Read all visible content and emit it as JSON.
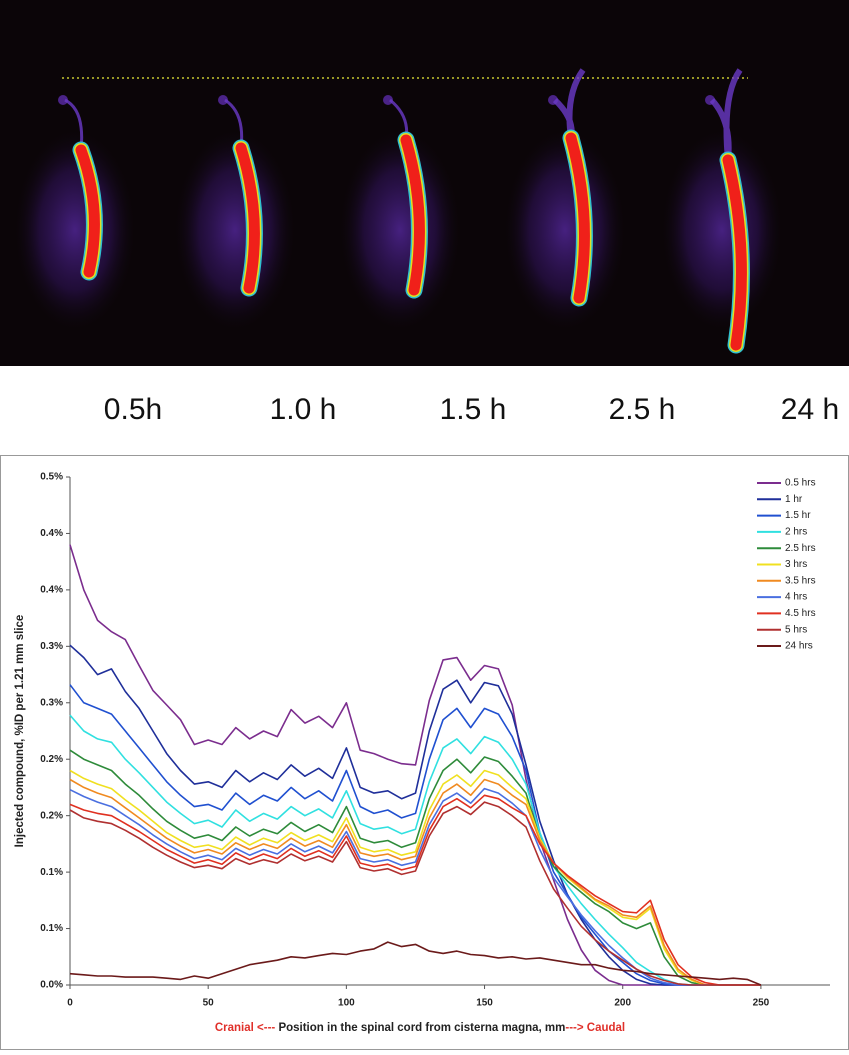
{
  "image_panel": {
    "labels": [
      "0.5h",
      "1.0 h",
      "1.5 h",
      "2.5 h",
      "24 h"
    ]
  },
  "chart_data": {
    "type": "line",
    "ylabel": "Injected compound, %ID per 1.21 mm slice",
    "xlabel": {
      "left": "Cranial <---",
      "middle": " Position in the spinal cord from cisterna magna, mm",
      "right": "---> Caudal"
    },
    "xlim": [
      0,
      275
    ],
    "xticks": [
      0,
      50,
      100,
      150,
      200,
      250
    ],
    "ylim": [
      0,
      0.45
    ],
    "yticks": [
      {
        "value": 0,
        "label": "0.0%"
      },
      {
        "value": 0.05,
        "label": "0.1%"
      },
      {
        "value": 0.1,
        "label": "0.1%"
      },
      {
        "value": 0.15,
        "label": "0.2%"
      },
      {
        "value": 0.2,
        "label": "0.2%"
      },
      {
        "value": 0.25,
        "label": "0.3%"
      },
      {
        "value": 0.3,
        "label": "0.3%"
      },
      {
        "value": 0.35,
        "label": "0.4%"
      },
      {
        "value": 0.4,
        "label": "0.4%"
      },
      {
        "value": 0.45,
        "label": "0.5%"
      }
    ],
    "grid": false,
    "legend": "upper right",
    "x": [
      0,
      5,
      10,
      15,
      20,
      25,
      30,
      35,
      40,
      45,
      50,
      55,
      60,
      65,
      70,
      75,
      80,
      85,
      90,
      95,
      100,
      105,
      110,
      115,
      120,
      125,
      130,
      135,
      140,
      145,
      150,
      155,
      160,
      165,
      170,
      175,
      180,
      185,
      190,
      195,
      200,
      205,
      210,
      215,
      220,
      225,
      230,
      235,
      240,
      245,
      250
    ],
    "series": [
      {
        "name": "0.5 hrs",
        "color": "#7b2d8e",
        "values": [
          0.39,
          0.35,
          0.323,
          0.313,
          0.306,
          0.283,
          0.261,
          0.248,
          0.235,
          0.213,
          0.217,
          0.213,
          0.228,
          0.218,
          0.225,
          0.22,
          0.244,
          0.232,
          0.238,
          0.228,
          0.25,
          0.208,
          0.205,
          0.2,
          0.196,
          0.195,
          0.252,
          0.288,
          0.29,
          0.27,
          0.283,
          0.28,
          0.248,
          0.182,
          0.128,
          0.093,
          0.058,
          0.031,
          0.013,
          0.004,
          0,
          0,
          0,
          0,
          0,
          0,
          0,
          0,
          0,
          0,
          0
        ]
      },
      {
        "name": "1 hr",
        "color": "#1f2f9a",
        "values": [
          0.301,
          0.29,
          0.275,
          0.28,
          0.26,
          0.245,
          0.225,
          0.205,
          0.19,
          0.178,
          0.18,
          0.175,
          0.19,
          0.18,
          0.188,
          0.182,
          0.195,
          0.185,
          0.192,
          0.183,
          0.21,
          0.175,
          0.17,
          0.172,
          0.165,
          0.17,
          0.225,
          0.262,
          0.27,
          0.25,
          0.268,
          0.265,
          0.24,
          0.195,
          0.145,
          0.11,
          0.08,
          0.058,
          0.04,
          0.025,
          0.013,
          0.005,
          0.001,
          0,
          0,
          0,
          0,
          0,
          0,
          0,
          0
        ]
      },
      {
        "name": "1.5 hr",
        "color": "#2050d0",
        "values": [
          0.266,
          0.25,
          0.245,
          0.24,
          0.225,
          0.21,
          0.195,
          0.18,
          0.168,
          0.158,
          0.16,
          0.155,
          0.17,
          0.16,
          0.168,
          0.163,
          0.175,
          0.165,
          0.172,
          0.163,
          0.19,
          0.158,
          0.152,
          0.155,
          0.148,
          0.152,
          0.2,
          0.235,
          0.245,
          0.228,
          0.245,
          0.24,
          0.22,
          0.19,
          0.135,
          0.1,
          0.08,
          0.06,
          0.045,
          0.03,
          0.02,
          0.01,
          0.004,
          0.001,
          0,
          0,
          0,
          0,
          0,
          0,
          0
        ]
      },
      {
        "name": " 2 hrs",
        "color": "#30e0e0",
        "values": [
          0.239,
          0.225,
          0.218,
          0.215,
          0.2,
          0.188,
          0.175,
          0.162,
          0.152,
          0.143,
          0.146,
          0.14,
          0.155,
          0.145,
          0.152,
          0.147,
          0.158,
          0.15,
          0.156,
          0.148,
          0.172,
          0.143,
          0.138,
          0.14,
          0.134,
          0.138,
          0.18,
          0.21,
          0.218,
          0.205,
          0.22,
          0.215,
          0.2,
          0.178,
          0.135,
          0.105,
          0.088,
          0.072,
          0.058,
          0.045,
          0.033,
          0.02,
          0.012,
          0.005,
          0.001,
          0,
          0,
          0,
          0,
          0,
          0
        ]
      },
      {
        "name": "2.5 hrs",
        "color": "#2e8b3a",
        "values": [
          0.208,
          0.2,
          0.195,
          0.19,
          0.178,
          0.168,
          0.156,
          0.145,
          0.137,
          0.13,
          0.133,
          0.128,
          0.14,
          0.132,
          0.138,
          0.134,
          0.144,
          0.136,
          0.142,
          0.135,
          0.158,
          0.13,
          0.126,
          0.128,
          0.122,
          0.126,
          0.165,
          0.19,
          0.2,
          0.188,
          0.202,
          0.198,
          0.185,
          0.17,
          0.13,
          0.105,
          0.092,
          0.082,
          0.072,
          0.065,
          0.055,
          0.05,
          0.055,
          0.025,
          0.008,
          0.002,
          0,
          0,
          0,
          0,
          0
        ]
      },
      {
        "name": "3 hrs",
        "color": "#f0e020",
        "values": [
          0.19,
          0.183,
          0.178,
          0.174,
          0.164,
          0.155,
          0.145,
          0.135,
          0.128,
          0.122,
          0.124,
          0.12,
          0.131,
          0.124,
          0.13,
          0.126,
          0.135,
          0.128,
          0.133,
          0.127,
          0.148,
          0.122,
          0.118,
          0.12,
          0.115,
          0.118,
          0.155,
          0.178,
          0.186,
          0.176,
          0.19,
          0.186,
          0.175,
          0.165,
          0.13,
          0.108,
          0.095,
          0.085,
          0.075,
          0.068,
          0.06,
          0.058,
          0.068,
          0.032,
          0.012,
          0.004,
          0,
          0,
          0,
          0,
          0
        ]
      },
      {
        "name": "3.5 hrs",
        "color": "#f08a20",
        "values": [
          0.182,
          0.175,
          0.17,
          0.166,
          0.157,
          0.148,
          0.139,
          0.13,
          0.123,
          0.117,
          0.12,
          0.116,
          0.126,
          0.12,
          0.125,
          0.121,
          0.13,
          0.123,
          0.128,
          0.122,
          0.142,
          0.117,
          0.114,
          0.116,
          0.111,
          0.114,
          0.148,
          0.17,
          0.178,
          0.168,
          0.182,
          0.178,
          0.168,
          0.16,
          0.128,
          0.108,
          0.096,
          0.086,
          0.076,
          0.07,
          0.062,
          0.06,
          0.07,
          0.035,
          0.014,
          0.005,
          0,
          0,
          0,
          0,
          0
        ]
      },
      {
        "name": "4 hrs",
        "color": "#4a6fe0",
        "values": [
          0.173,
          0.167,
          0.162,
          0.158,
          0.15,
          0.142,
          0.133,
          0.125,
          0.118,
          0.112,
          0.115,
          0.111,
          0.121,
          0.115,
          0.12,
          0.116,
          0.125,
          0.118,
          0.123,
          0.117,
          0.136,
          0.112,
          0.109,
          0.111,
          0.106,
          0.109,
          0.142,
          0.163,
          0.17,
          0.161,
          0.174,
          0.17,
          0.161,
          0.15,
          0.12,
          0.095,
          0.078,
          0.062,
          0.048,
          0.035,
          0.024,
          0.014,
          0.006,
          0.002,
          0,
          0,
          0,
          0,
          0,
          0,
          0
        ]
      },
      {
        "name": "4.5 hrs",
        "color": "#e03020",
        "values": [
          0.16,
          0.155,
          0.152,
          0.15,
          0.143,
          0.136,
          0.128,
          0.12,
          0.114,
          0.108,
          0.111,
          0.107,
          0.117,
          0.111,
          0.116,
          0.112,
          0.121,
          0.114,
          0.119,
          0.113,
          0.132,
          0.108,
          0.105,
          0.107,
          0.102,
          0.105,
          0.137,
          0.158,
          0.165,
          0.157,
          0.168,
          0.165,
          0.157,
          0.15,
          0.125,
          0.108,
          0.097,
          0.088,
          0.079,
          0.072,
          0.065,
          0.064,
          0.075,
          0.04,
          0.018,
          0.007,
          0.002,
          0,
          0,
          0,
          0
        ]
      },
      {
        "name": "5 hrs",
        "color": "#b03030",
        "values": [
          0.155,
          0.148,
          0.145,
          0.143,
          0.137,
          0.13,
          0.122,
          0.115,
          0.109,
          0.104,
          0.106,
          0.103,
          0.112,
          0.107,
          0.111,
          0.108,
          0.116,
          0.11,
          0.114,
          0.109,
          0.127,
          0.104,
          0.101,
          0.103,
          0.098,
          0.101,
          0.132,
          0.152,
          0.158,
          0.151,
          0.162,
          0.158,
          0.15,
          0.14,
          0.11,
          0.085,
          0.068,
          0.052,
          0.04,
          0.03,
          0.022,
          0.014,
          0.008,
          0.004,
          0.001,
          0,
          0,
          0,
          0,
          0,
          0
        ]
      },
      {
        "name": "24 hrs",
        "color": "#6b1a1a",
        "values": [
          0.01,
          0.009,
          0.008,
          0.008,
          0.007,
          0.007,
          0.007,
          0.006,
          0.005,
          0.008,
          0.006,
          0.01,
          0.014,
          0.018,
          0.02,
          0.022,
          0.025,
          0.024,
          0.026,
          0.028,
          0.027,
          0.03,
          0.032,
          0.038,
          0.034,
          0.036,
          0.03,
          0.028,
          0.03,
          0.027,
          0.026,
          0.024,
          0.025,
          0.023,
          0.024,
          0.022,
          0.02,
          0.018,
          0.018,
          0.015,
          0.013,
          0.012,
          0.01,
          0.009,
          0.008,
          0.007,
          0.006,
          0.005,
          0.006,
          0.005,
          0
        ]
      }
    ]
  }
}
